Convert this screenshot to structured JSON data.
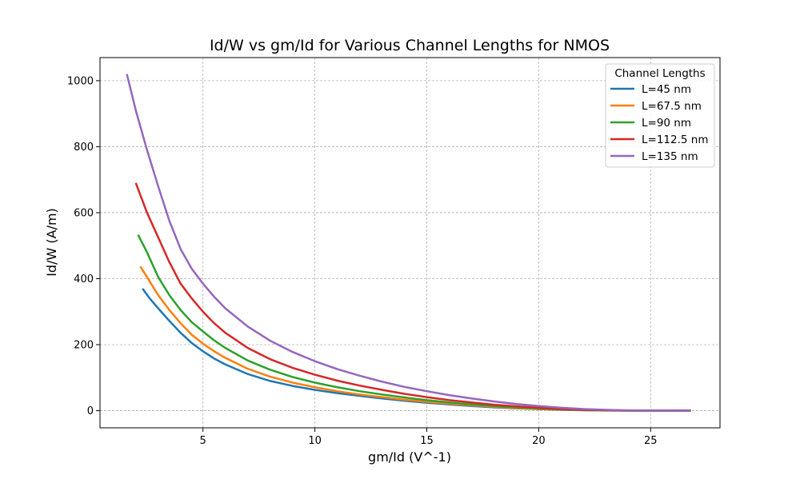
{
  "chart_data": {
    "type": "line",
    "title": "Id/W vs gm/Id for Various Channel Lengths for NMOS",
    "xlabel": "gm/Id (V^-1)",
    "ylabel": "Id/W (A/m)",
    "xlim": [
      0.4,
      28.1
    ],
    "ylim": [
      -52,
      1070
    ],
    "x_ticks": [
      5,
      10,
      15,
      20,
      25
    ],
    "y_ticks": [
      0,
      200,
      400,
      600,
      800,
      1000
    ],
    "grid": true,
    "legend": {
      "title": "Channel Lengths",
      "position": "top-right"
    },
    "series": [
      {
        "name": "L=45 nm",
        "color": "#1f77b4",
        "points": [
          [
            2.3,
            370
          ],
          [
            2.6,
            342
          ],
          [
            3,
            310
          ],
          [
            3.5,
            272
          ],
          [
            4,
            236
          ],
          [
            4.5,
            205
          ],
          [
            5,
            180
          ],
          [
            5.5,
            158
          ],
          [
            6,
            140
          ],
          [
            7,
            111
          ],
          [
            8,
            90
          ],
          [
            9,
            75
          ],
          [
            10,
            63
          ],
          [
            11,
            53
          ],
          [
            12,
            45
          ],
          [
            13,
            37
          ],
          [
            14,
            30
          ],
          [
            15,
            24
          ],
          [
            16,
            19
          ],
          [
            17,
            14
          ],
          [
            18,
            10
          ],
          [
            19,
            7
          ],
          [
            20,
            4.5
          ],
          [
            21,
            2.5
          ],
          [
            22,
            1.2
          ],
          [
            23,
            0.5
          ],
          [
            24,
            0.2
          ],
          [
            25,
            0.1
          ],
          [
            26,
            0
          ],
          [
            26.8,
            0
          ]
        ]
      },
      {
        "name": "L=67.5 nm",
        "color": "#ff7f0e",
        "points": [
          [
            2.2,
            437
          ],
          [
            2.5,
            405
          ],
          [
            3,
            350
          ],
          [
            3.5,
            305
          ],
          [
            4,
            265
          ],
          [
            4.5,
            230
          ],
          [
            5,
            203
          ],
          [
            5.5,
            180
          ],
          [
            6,
            160
          ],
          [
            7,
            127
          ],
          [
            8,
            103
          ],
          [
            9,
            85
          ],
          [
            10,
            71
          ],
          [
            11,
            59
          ],
          [
            12,
            49
          ],
          [
            13,
            41
          ],
          [
            14,
            33
          ],
          [
            15,
            27
          ],
          [
            16,
            21
          ],
          [
            17,
            16
          ],
          [
            18,
            12
          ],
          [
            19,
            8
          ],
          [
            20,
            5
          ],
          [
            21,
            3
          ],
          [
            22,
            1.5
          ],
          [
            23,
            0.7
          ],
          [
            24,
            0.3
          ],
          [
            25,
            0.1
          ],
          [
            26,
            0
          ],
          [
            26.8,
            0
          ]
        ]
      },
      {
        "name": "L=90 nm",
        "color": "#2ca02c",
        "points": [
          [
            2.1,
            533
          ],
          [
            2.5,
            480
          ],
          [
            3,
            405
          ],
          [
            3.5,
            350
          ],
          [
            4,
            305
          ],
          [
            4.5,
            268
          ],
          [
            5,
            240
          ],
          [
            5.5,
            213
          ],
          [
            6,
            190
          ],
          [
            7,
            152
          ],
          [
            8,
            124
          ],
          [
            9,
            102
          ],
          [
            10,
            85
          ],
          [
            11,
            71
          ],
          [
            12,
            59
          ],
          [
            13,
            49
          ],
          [
            14,
            40
          ],
          [
            15,
            32
          ],
          [
            16,
            25
          ],
          [
            17,
            19
          ],
          [
            18,
            14
          ],
          [
            19,
            10
          ],
          [
            20,
            6.5
          ],
          [
            21,
            4
          ],
          [
            22,
            2
          ],
          [
            23,
            1
          ],
          [
            24,
            0.4
          ],
          [
            25,
            0.1
          ],
          [
            26,
            0
          ],
          [
            26.8,
            0
          ]
        ]
      },
      {
        "name": "L=112.5 nm",
        "color": "#d62728",
        "points": [
          [
            2.0,
            690
          ],
          [
            2.5,
            600
          ],
          [
            3,
            525
          ],
          [
            3.5,
            450
          ],
          [
            4,
            385
          ],
          [
            4.5,
            340
          ],
          [
            5,
            300
          ],
          [
            5.5,
            265
          ],
          [
            6,
            236
          ],
          [
            7,
            190
          ],
          [
            8,
            156
          ],
          [
            9,
            130
          ],
          [
            10,
            109
          ],
          [
            11,
            91
          ],
          [
            12,
            76
          ],
          [
            13,
            63
          ],
          [
            14,
            51
          ],
          [
            15,
            41
          ],
          [
            16,
            32
          ],
          [
            17,
            25
          ],
          [
            18,
            18
          ],
          [
            19,
            13
          ],
          [
            20,
            8.5
          ],
          [
            21,
            5
          ],
          [
            22,
            2.5
          ],
          [
            23,
            1.2
          ],
          [
            24,
            0.5
          ],
          [
            25,
            0.2
          ],
          [
            26,
            0
          ],
          [
            26.8,
            0
          ]
        ]
      },
      {
        "name": "L=135 nm",
        "color": "#9467bd",
        "points": [
          [
            1.6,
            1020
          ],
          [
            2,
            910
          ],
          [
            2.5,
            790
          ],
          [
            3,
            680
          ],
          [
            3.5,
            575
          ],
          [
            4,
            490
          ],
          [
            4.5,
            430
          ],
          [
            5,
            385
          ],
          [
            5.5,
            345
          ],
          [
            6,
            310
          ],
          [
            7,
            255
          ],
          [
            8,
            212
          ],
          [
            9,
            178
          ],
          [
            10,
            150
          ],
          [
            11,
            126
          ],
          [
            12,
            106
          ],
          [
            13,
            88
          ],
          [
            14,
            72
          ],
          [
            15,
            59
          ],
          [
            16,
            47
          ],
          [
            17,
            37
          ],
          [
            18,
            28
          ],
          [
            19,
            20
          ],
          [
            20,
            14
          ],
          [
            21,
            9
          ],
          [
            22,
            5
          ],
          [
            23,
            2.5
          ],
          [
            24,
            1
          ],
          [
            25,
            0.4
          ],
          [
            26,
            0.1
          ],
          [
            26.8,
            0
          ]
        ]
      }
    ]
  }
}
